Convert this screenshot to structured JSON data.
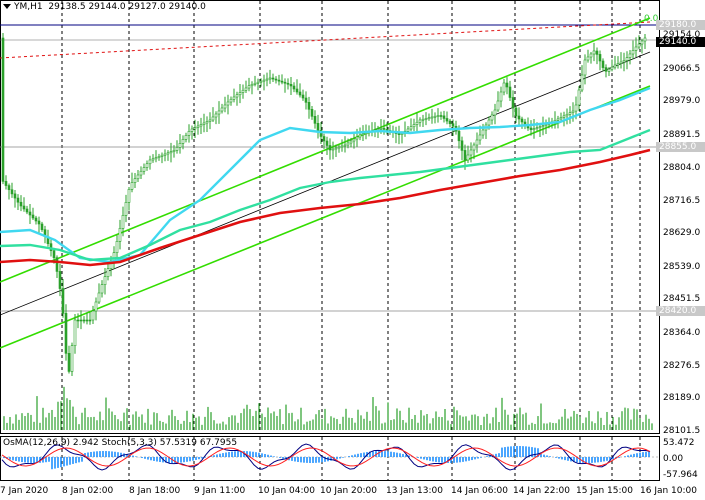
{
  "header": {
    "symbol_timeframe": "YM,H1",
    "ohlc": "29138.5 29144.0 29127.0 29140.0"
  },
  "oscillator": {
    "label": "OsMA(12,26,9) 2.942",
    "stoch_label": "Stoch(5,3,3) 57.5319 67.7955",
    "y_labels": [
      "53.472",
      "0.00",
      "-57.964"
    ]
  },
  "price_axis": {
    "ticks": [
      "29154.0",
      "29066.5",
      "28979.0",
      "28891.5",
      "28804.0",
      "28716.5",
      "28629.0",
      "28539.0",
      "28451.5",
      "28364.0",
      "28276.5",
      "28189.0",
      "28101.5"
    ],
    "marked": [
      {
        "value": "29180.0",
        "style": "grey"
      },
      {
        "value": "29140.0",
        "style": "black"
      },
      {
        "value": "28855.0",
        "style": "grey"
      },
      {
        "value": "28420.0",
        "style": "grey"
      }
    ],
    "zero_label": "0.0"
  },
  "time_axis": {
    "labels": [
      "7 Jan 2020",
      "8 Jan 02:00",
      "8 Jan 18:00",
      "9 Jan 11:00",
      "10 Jan 04:00",
      "10 Jan 20:00",
      "13 Jan 13:00",
      "14 Jan 06:00",
      "14 Jan 22:00",
      "15 Jan 15:00",
      "16 Jan 10:00"
    ]
  },
  "colors": {
    "ema_fast": "#40d8f0",
    "ema_mid": "#30e0a0",
    "ema_slow": "#e01010",
    "channel": "#33dd00",
    "regression": "#000000",
    "candle": "#2aa02a",
    "volume": "#2aa02a",
    "osma": "#1e90ff",
    "stoch_main": "#000080",
    "stoch_signal": "#ff2020"
  }
}
